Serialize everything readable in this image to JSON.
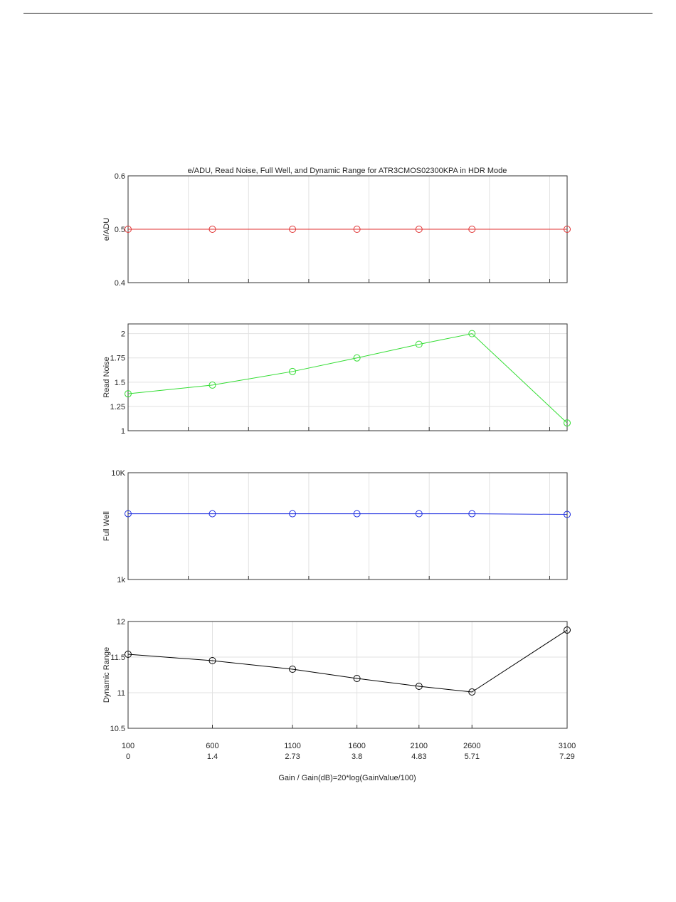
{
  "chart_data": {
    "type": "line",
    "title": "e/ADU, Read Noise, Full Well, and Dynamic Range for ATR3CMOS02300KPA in HDR Mode",
    "xlabel": "Gain / Gain(dB)=20*log(GainValue/100)",
    "x_gain_labels": [
      "100",
      "600",
      "1100",
      "1600",
      "2100",
      "2600",
      "3100"
    ],
    "x_db_labels": [
      "0",
      "1.4",
      "2.73",
      "3.8",
      "4.83",
      "5.71",
      "7.29"
    ],
    "x_db": [
      0,
      1.4,
      2.73,
      3.8,
      4.83,
      5.71,
      7.29
    ],
    "xlim_db": [
      0,
      7.29
    ],
    "grid": true,
    "panels": [
      {
        "ylabel": "e/ADU",
        "color": "#e03030",
        "scale": "linear",
        "ylim": [
          0.4,
          0.6
        ],
        "yticks": [
          0.4,
          0.5,
          0.6
        ],
        "ytick_labels": [
          "0.4",
          "0.5",
          "0.6"
        ],
        "values": [
          0.5,
          0.5,
          0.5,
          0.5,
          0.5,
          0.5,
          0.5
        ],
        "grid_x": "1dB"
      },
      {
        "ylabel": "Read Noise",
        "color": "#33dd33",
        "scale": "linear",
        "ylim": [
          1,
          2.1
        ],
        "yticks": [
          1,
          1.25,
          1.5,
          1.75,
          2
        ],
        "ytick_labels": [
          "1",
          "1.25",
          "1.5",
          "1.75",
          "2"
        ],
        "values": [
          1.38,
          1.47,
          1.61,
          1.75,
          1.89,
          2.0,
          1.08
        ],
        "grid_x": "1dB"
      },
      {
        "ylabel": "Full Well",
        "color": "#2030e0",
        "scale": "log",
        "ylim": [
          1000,
          10000
        ],
        "yticks": [
          1000,
          10000
        ],
        "ytick_labels": [
          "1k",
          "10K"
        ],
        "values": [
          4130,
          4130,
          4130,
          4130,
          4130,
          4130,
          4070
        ],
        "grid_x": "1dB"
      },
      {
        "ylabel": "Dynamic Range",
        "color": "#000000",
        "scale": "linear",
        "ylim": [
          10.5,
          12
        ],
        "yticks": [
          10.5,
          11,
          11.5,
          12
        ],
        "ytick_labels": [
          "10.5",
          "11",
          "11.5",
          "12"
        ],
        "values": [
          11.54,
          11.45,
          11.33,
          11.2,
          11.09,
          11.01,
          11.88
        ],
        "grid_x": "ticks"
      }
    ]
  }
}
